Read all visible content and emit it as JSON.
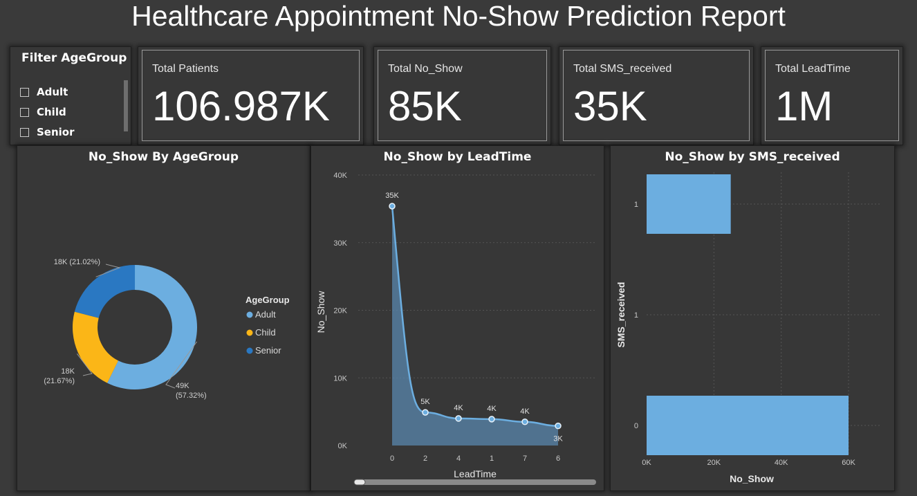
{
  "title": "Healthcare Appointment No-Show Prediction Report",
  "filter": {
    "title": "Filter AgeGroup",
    "options": [
      "Adult",
      "Child",
      "Senior"
    ]
  },
  "kpis": [
    {
      "label": "Total Patients",
      "value": "106.987K"
    },
    {
      "label": "Total No_Show",
      "value": "85K"
    },
    {
      "label": "Total SMS_received",
      "value": "35K"
    },
    {
      "label": "Total LeadTime",
      "value": "1M"
    }
  ],
  "colors": {
    "adult": "#6caee0",
    "child": "#fbb617",
    "senior": "#2a78c2",
    "line": "#6caee0",
    "bar": "#6caee0"
  },
  "chart_data": [
    {
      "type": "pie",
      "title": "No_Show By AgeGroup",
      "legend_title": "AgeGroup",
      "legend_position": "right",
      "categories": [
        "Adult",
        "Child",
        "Senior"
      ],
      "values": [
        49,
        18,
        18
      ],
      "percents": [
        57.32,
        21.67,
        21.02
      ],
      "labels": [
        "49K",
        "18K",
        "18K"
      ],
      "percent_labels": [
        "(57.32%)",
        "(21.67%)",
        "(21.02%)"
      ],
      "donut": true
    },
    {
      "type": "area",
      "title": "No_Show by LeadTime",
      "xlabel": "LeadTime",
      "ylabel": "No_Show",
      "categories": [
        "0",
        "2",
        "4",
        "1",
        "7",
        "6"
      ],
      "values": [
        35400,
        4900,
        4000,
        3900,
        3500,
        2900
      ],
      "data_labels": [
        "35K",
        "5K",
        "4K",
        "4K",
        "4K",
        "3K"
      ],
      "ylim": [
        0,
        40000
      ],
      "yticks": [
        "0K",
        "10K",
        "20K",
        "30K",
        "40K"
      ],
      "grid": true
    },
    {
      "type": "bar",
      "orientation": "horizontal",
      "title": "No_Show by SMS_received",
      "xlabel": "No_Show",
      "ylabel": "SMS_received",
      "categories": [
        "1",
        "1",
        "0"
      ],
      "values": [
        25000,
        null,
        60000
      ],
      "xlim": [
        0,
        60000
      ],
      "xticks": [
        "0K",
        "20K",
        "40K",
        "60K"
      ],
      "grid": true
    }
  ]
}
